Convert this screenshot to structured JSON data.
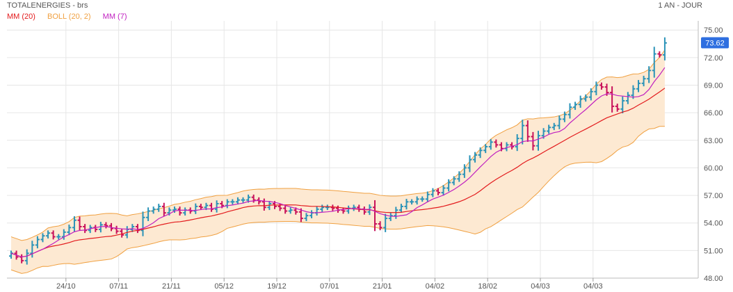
{
  "header": {
    "title": "TOTALENERGIES - brs",
    "period": "1 AN - JOUR"
  },
  "legend": [
    {
      "label": "MM (20)",
      "color": "#e31a1c"
    },
    {
      "label": "BOLL (20, 2)",
      "color": "#f0a040"
    },
    {
      "label": "MM (7)",
      "color": "#c020c0"
    }
  ],
  "chart_data": {
    "type": "ohlc",
    "ylim": [
      48.0,
      76.0
    ],
    "yticks": [
      "75.00",
      "72.00",
      "69.00",
      "66.00",
      "63.00",
      "60.00",
      "57.00",
      "54.00",
      "51.00"
    ],
    "ytick_values": [
      75,
      72,
      69,
      66,
      63,
      60,
      57,
      54,
      51
    ],
    "bottom_partial_label": "48.00",
    "last_price": "73.62",
    "xticks": [
      "24/10",
      "07/11",
      "21/11",
      "05/12",
      "19/12",
      "07/01",
      "21/01",
      "04/02",
      "18/02",
      "04/03",
      "04/03"
    ],
    "xtick_index": [
      10,
      20,
      30,
      40,
      50,
      60,
      70,
      80,
      90,
      100,
      110
    ],
    "colors": {
      "up": "#2a93b8",
      "down": "#c8115a",
      "ma20": "#e31a1c",
      "ma7": "#c020c0",
      "boll_line": "#f0a040",
      "boll_fill": "#fde9d2",
      "last_price_bg": "#2f6fe0"
    },
    "closes": [
      50.7,
      50.3,
      49.9,
      50.7,
      51.6,
      52.2,
      52.6,
      52.9,
      52.5,
      52.5,
      53.0,
      53.5,
      54.3,
      53.6,
      53.2,
      53.5,
      53.3,
      53.8,
      53.7,
      53.4,
      53.1,
      52.7,
      53.3,
      53.6,
      53.2,
      54.6,
      55.3,
      55.5,
      55.8,
      55.1,
      55.4,
      55.5,
      55.1,
      55.4,
      55.3,
      55.8,
      55.7,
      55.9,
      55.5,
      56.1,
      55.9,
      56.3,
      56.3,
      56.5,
      56.5,
      56.8,
      56.5,
      56.3,
      55.7,
      56.1,
      55.8,
      55.6,
      55.3,
      55.4,
      55.2,
      54.5,
      54.8,
      55.1,
      55.5,
      55.7,
      55.7,
      55.6,
      55.4,
      55.3,
      55.6,
      55.7,
      55.5,
      55.2,
      55.7,
      53.9,
      53.5,
      54.5,
      54.8,
      55.4,
      55.8,
      56.3,
      56.3,
      56.6,
      56.6,
      57.1,
      57.5,
      57.3,
      57.8,
      58.4,
      58.8,
      59.3,
      60.0,
      60.9,
      61.4,
      61.9,
      62.3,
      62.8,
      62.5,
      62.1,
      62.5,
      62.3,
      63.2,
      64.6,
      63.4,
      62.4,
      63.5,
      64.0,
      64.4,
      64.6,
      65.3,
      65.8,
      66.6,
      66.9,
      67.5,
      67.7,
      68.3,
      69.0,
      68.8,
      68.2,
      66.7,
      66.4,
      67.3,
      67.9,
      68.6,
      69.2,
      69.7,
      70.6,
      72.4,
      72.3,
      73.6
    ]
  }
}
